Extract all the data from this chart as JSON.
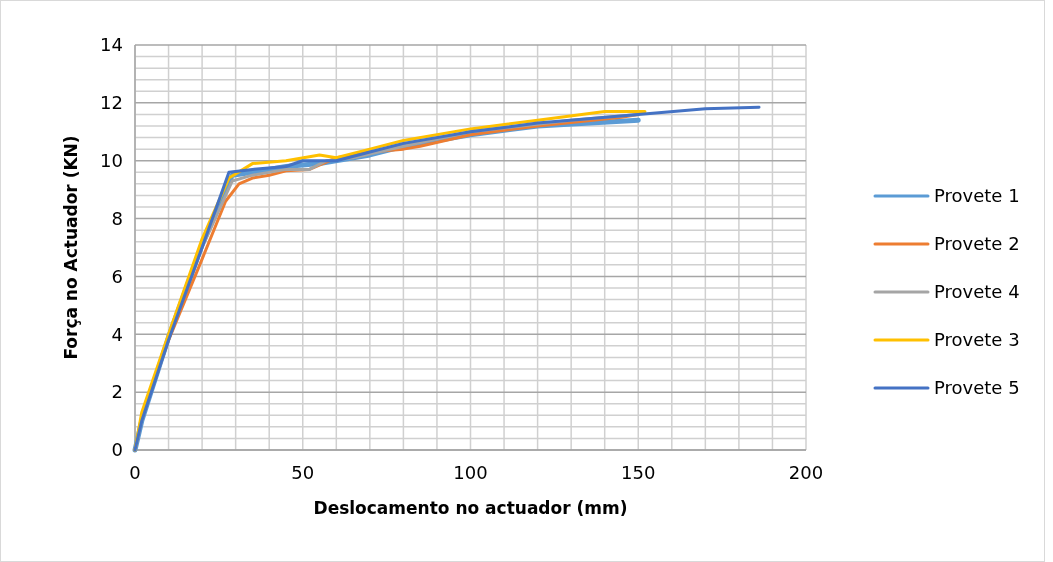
{
  "chart_data": {
    "type": "line",
    "xlabel": "Deslocamento no actuador (mm)",
    "ylabel": "Força no Actuador (KN)",
    "xlim": [
      0,
      200
    ],
    "xticks": [
      0,
      50,
      100,
      150,
      200
    ],
    "ylim": [
      0,
      14
    ],
    "yticks": [
      0,
      2,
      4,
      6,
      8,
      10,
      12,
      14
    ],
    "grid": true,
    "legend": "right",
    "line_style": "solid",
    "marker": "none",
    "series": [
      {
        "name": "Provete 1",
        "color": "#5b9bd5",
        "x": [
          0,
          2,
          10,
          20,
          29,
          35,
          45,
          55,
          70,
          80,
          100,
          120,
          150
        ],
        "values": [
          0,
          1,
          3.9,
          7.1,
          9.5,
          9.6,
          9.8,
          9.9,
          10.2,
          10.5,
          10.9,
          11.2,
          11.4
        ]
      },
      {
        "name": "Provete 2",
        "color": "#ed7d31",
        "x": [
          0,
          2,
          10,
          20,
          27,
          31,
          35,
          40,
          45,
          52,
          60,
          70,
          80,
          85,
          100,
          120,
          145,
          150
        ],
        "values": [
          0,
          1.1,
          3.8,
          6.6,
          8.6,
          9.2,
          9.4,
          9.5,
          9.65,
          9.7,
          10.1,
          10.3,
          10.4,
          10.5,
          10.9,
          11.2,
          11.5,
          11.6
        ]
      },
      {
        "name": "Provete 4",
        "color": "#a5a5a5",
        "x": [
          0,
          2,
          10,
          20,
          29,
          35,
          45,
          52,
          57,
          65,
          80,
          100,
          130,
          150
        ],
        "values": [
          0,
          1,
          3.9,
          7,
          9.3,
          9.5,
          9.7,
          9.7,
          10,
          10.1,
          10.5,
          11,
          11.4,
          11.6
        ]
      },
      {
        "name": "Provete 3",
        "color": "#ffc000",
        "x": [
          0,
          2,
          10,
          20,
          28,
          35,
          45,
          55,
          60,
          70,
          80,
          100,
          120,
          140,
          152
        ],
        "values": [
          0,
          1.3,
          4,
          7.3,
          9.4,
          9.9,
          10,
          10.2,
          10.1,
          10.4,
          10.7,
          11.1,
          11.4,
          11.7,
          11.7
        ]
      },
      {
        "name": "Provete 5",
        "color": "#4472c4",
        "x": [
          0,
          2,
          10,
          20,
          28,
          35,
          45,
          50,
          60,
          70,
          80,
          100,
          120,
          150,
          170,
          186
        ],
        "values": [
          0,
          1,
          3.8,
          7,
          9.6,
          9.7,
          9.8,
          10,
          10,
          10.3,
          10.6,
          11,
          11.3,
          11.6,
          11.8,
          11.85
        ]
      }
    ]
  }
}
